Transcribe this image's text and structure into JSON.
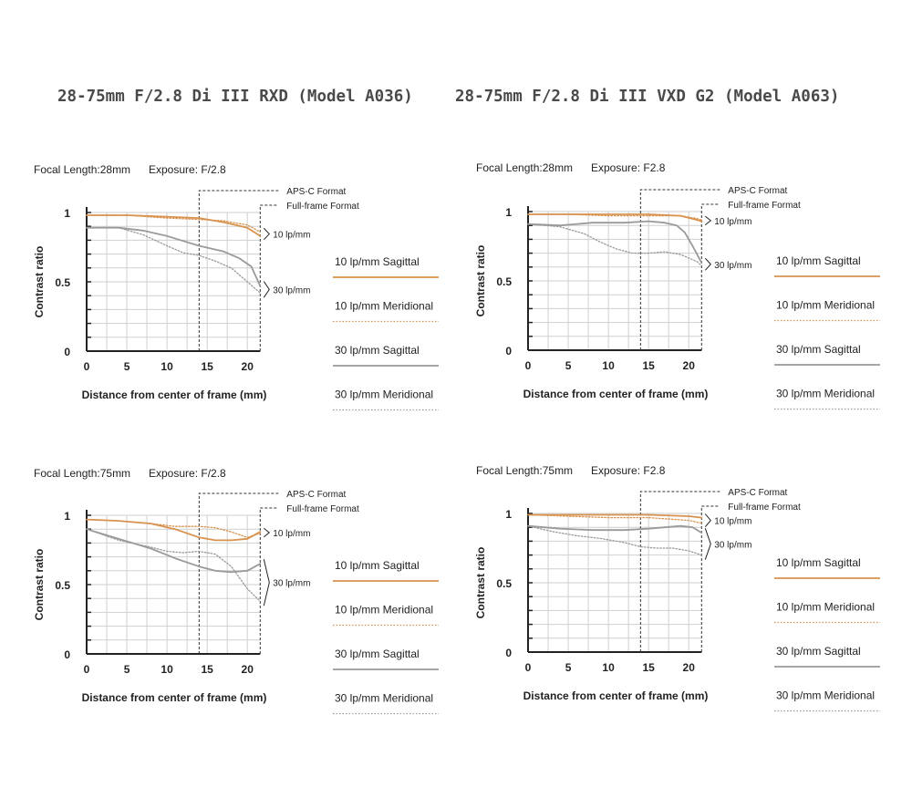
{
  "titles": {
    "left": "28-75mm F/2.8 Di III RXD (Model A036)",
    "right": "28-75mm F/2.8 Di III VXD G2 (Model A063)"
  },
  "colors": {
    "sagittal_10": "#d8924e",
    "meridional_10": "#d8924e",
    "sagittal_30": "#9a9a9a",
    "meridional_30": "#9a9a9a",
    "axis": "#222222",
    "grid": "#cfcfcf"
  },
  "chart_data": [
    {
      "type": "line",
      "focal_label": "Focal Length:28mm",
      "exposure_label": "Exposure: F/2.8",
      "xlabel": "Distance from center of frame (mm)",
      "ylabel": "Contrast ratio",
      "xlim": [
        0,
        21.6
      ],
      "ylim": [
        0,
        1
      ],
      "xticks": [
        0,
        5,
        10,
        15,
        20
      ],
      "yticks": [
        0,
        0.5,
        1
      ],
      "x_tick_labels": [
        "0",
        "5",
        "10",
        "15",
        "20"
      ],
      "y_tick_labels": [
        "0",
        "0.5",
        "1"
      ],
      "apsc_x": 14,
      "ff_x": 21.6,
      "apsc_label": "APS-C Format",
      "ff_label": "Full-frame Format",
      "bracket_10": "10 lp/mm",
      "bracket_30": "30 lp/mm",
      "series": [
        {
          "name": "10 lp/mm Sagittal",
          "x": [
            0,
            5,
            10,
            14,
            17,
            20,
            21.6
          ],
          "y": [
            0.98,
            0.98,
            0.97,
            0.96,
            0.93,
            0.89,
            0.83
          ]
        },
        {
          "name": "10 lp/mm Meridional",
          "x": [
            0,
            5,
            10,
            14,
            17,
            20,
            21.6
          ],
          "y": [
            0.98,
            0.98,
            0.96,
            0.95,
            0.94,
            0.91,
            0.86
          ]
        },
        {
          "name": "30 lp/mm Sagittal",
          "x": [
            0,
            4,
            7,
            10,
            14,
            17,
            19,
            20.5,
            21.6
          ],
          "y": [
            0.89,
            0.89,
            0.87,
            0.83,
            0.76,
            0.72,
            0.67,
            0.61,
            0.47
          ]
        },
        {
          "name": "30 lp/mm Meridional",
          "x": [
            0,
            4,
            7,
            10,
            12,
            14,
            16,
            18,
            20,
            21.6
          ],
          "y": [
            0.89,
            0.89,
            0.84,
            0.76,
            0.71,
            0.69,
            0.65,
            0.6,
            0.5,
            0.42
          ]
        }
      ]
    },
    {
      "type": "line",
      "focal_label": "Focal Length:28mm",
      "exposure_label": "Exposure: F2.8",
      "xlabel": "Distance from center of frame (mm)",
      "ylabel": "Contrast ratio",
      "xlim": [
        0,
        21.6
      ],
      "ylim": [
        0,
        1
      ],
      "xticks": [
        0,
        5,
        10,
        15,
        20
      ],
      "yticks": [
        0,
        0.5,
        1
      ],
      "x_tick_labels": [
        "0",
        "5",
        "10",
        "15",
        "20"
      ],
      "y_tick_labels": [
        "0",
        "0.5",
        "1"
      ],
      "apsc_x": 14,
      "ff_x": 21.6,
      "apsc_label": "APS-C Format",
      "ff_label": "Full-frame Format",
      "bracket_10": "10 lp/mm",
      "bracket_30": "30 lp/mm",
      "series": [
        {
          "name": "10 lp/mm Sagittal",
          "x": [
            0,
            5,
            10,
            15,
            19,
            21,
            21.6
          ],
          "y": [
            0.98,
            0.98,
            0.98,
            0.98,
            0.97,
            0.94,
            0.93
          ]
        },
        {
          "name": "10 lp/mm Meridional",
          "x": [
            0,
            5,
            10,
            15,
            19,
            21,
            21.6
          ],
          "y": [
            0.98,
            0.98,
            0.97,
            0.97,
            0.97,
            0.95,
            0.94
          ]
        },
        {
          "name": "30 lp/mm Sagittal",
          "x": [
            0,
            4,
            8,
            12,
            15,
            17,
            18.5,
            19.5,
            20.5,
            21.6
          ],
          "y": [
            0.91,
            0.9,
            0.92,
            0.92,
            0.93,
            0.92,
            0.9,
            0.85,
            0.75,
            0.63
          ]
        },
        {
          "name": "30 lp/mm Meridional",
          "x": [
            0,
            4,
            7,
            9,
            11,
            13,
            15,
            17,
            19,
            21,
            21.6
          ],
          "y": [
            0.91,
            0.89,
            0.84,
            0.78,
            0.73,
            0.7,
            0.7,
            0.71,
            0.69,
            0.64,
            0.61
          ]
        }
      ]
    },
    {
      "type": "line",
      "focal_label": "Focal Length:75mm",
      "exposure_label": "Exposure: F/2.8",
      "xlabel": "Distance from center of frame (mm)",
      "ylabel": "Contrast ratio",
      "xlim": [
        0,
        21.6
      ],
      "ylim": [
        0,
        1
      ],
      "xticks": [
        0,
        5,
        10,
        15,
        20
      ],
      "yticks": [
        0,
        0.5,
        1
      ],
      "x_tick_labels": [
        "0",
        "5",
        "10",
        "15",
        "20"
      ],
      "y_tick_labels": [
        "0",
        "0.5",
        "1"
      ],
      "apsc_x": 14,
      "ff_x": 21.6,
      "apsc_label": "APS-C Format",
      "ff_label": "Full-frame Format",
      "bracket_10": "10 lp/mm",
      "bracket_30": "30 lp/mm",
      "series": [
        {
          "name": "10 lp/mm Sagittal",
          "x": [
            0,
            4,
            8,
            11,
            14,
            16,
            18,
            20,
            21.6
          ],
          "y": [
            0.97,
            0.96,
            0.94,
            0.9,
            0.84,
            0.82,
            0.82,
            0.83,
            0.88
          ]
        },
        {
          "name": "10 lp/mm Meridional",
          "x": [
            0,
            4,
            8,
            11,
            14,
            16,
            18,
            20,
            21.6
          ],
          "y": [
            0.97,
            0.96,
            0.94,
            0.92,
            0.92,
            0.91,
            0.88,
            0.84,
            0.87
          ]
        },
        {
          "name": "30 lp/mm Sagittal",
          "x": [
            0,
            4,
            8,
            11,
            14,
            16,
            18,
            20,
            21.6
          ],
          "y": [
            0.9,
            0.83,
            0.76,
            0.69,
            0.63,
            0.6,
            0.59,
            0.6,
            0.65
          ]
        },
        {
          "name": "30 lp/mm Meridional",
          "x": [
            0,
            4,
            8,
            10,
            12,
            14,
            16,
            18,
            20,
            21.6
          ],
          "y": [
            0.9,
            0.82,
            0.77,
            0.74,
            0.73,
            0.74,
            0.72,
            0.63,
            0.47,
            0.38
          ]
        }
      ]
    },
    {
      "type": "line",
      "focal_label": "Focal Length:75mm",
      "exposure_label": "Exposure: F2.8",
      "xlabel": "Distance from center of frame (mm)",
      "ylabel": "Contrast ratio",
      "xlim": [
        0,
        21.6
      ],
      "ylim": [
        0,
        1
      ],
      "xticks": [
        0,
        5,
        10,
        15,
        20
      ],
      "yticks": [
        0,
        0.5,
        1
      ],
      "x_tick_labels": [
        "0",
        "5",
        "10",
        "15",
        "20"
      ],
      "y_tick_labels": [
        "0",
        "0.5",
        "1"
      ],
      "apsc_x": 14,
      "ff_x": 21.6,
      "apsc_label": "APS-C Format",
      "ff_label": "Full-frame Format",
      "bracket_10": "10 lp/mm",
      "bracket_30": "30 lp/mm",
      "series": [
        {
          "name": "10 lp/mm Sagittal",
          "x": [
            0,
            5,
            10,
            15,
            20,
            21.6
          ],
          "y": [
            0.99,
            0.99,
            0.99,
            0.99,
            0.98,
            0.97
          ]
        },
        {
          "name": "10 lp/mm Meridional",
          "x": [
            0,
            5,
            10,
            15,
            20,
            21.6
          ],
          "y": [
            0.99,
            0.98,
            0.97,
            0.97,
            0.95,
            0.93
          ]
        },
        {
          "name": "30 lp/mm Sagittal",
          "x": [
            0,
            4,
            8,
            12,
            15,
            17,
            19,
            20.5,
            21.6
          ],
          "y": [
            0.91,
            0.89,
            0.88,
            0.88,
            0.89,
            0.9,
            0.91,
            0.9,
            0.86
          ]
        },
        {
          "name": "30 lp/mm Meridional",
          "x": [
            0,
            3,
            6,
            9,
            12,
            14,
            16,
            18,
            20,
            21.6
          ],
          "y": [
            0.91,
            0.87,
            0.84,
            0.82,
            0.79,
            0.76,
            0.75,
            0.75,
            0.73,
            0.7
          ]
        }
      ]
    }
  ],
  "legend_labels": [
    "10 lp/mm Sagittal",
    "10 lp/mm Meridional",
    "30 lp/mm Sagittal",
    "30 lp/mm Meridional"
  ]
}
